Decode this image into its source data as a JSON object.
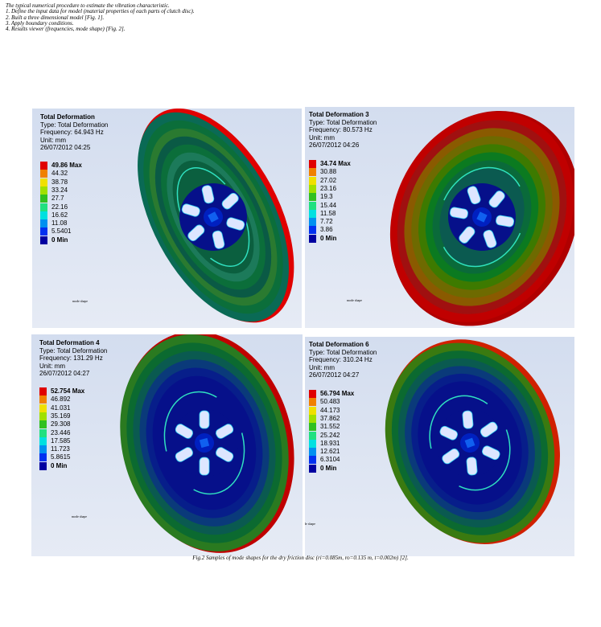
{
  "intro": [
    "The typical numerical procedure to estimate the vibration characteristic.",
    "1. Define the input data for model (material properties of each parts of clutch disc).",
    "2. Built a three dimensional model [Fig. 1].",
    "3. Apply boundary conditions.",
    "4. Results viewer (frequencies, mode shape) [Fig. 2]."
  ],
  "panels": [
    {
      "title": "Total Deformation",
      "type": "Type: Total Deformation",
      "frequency": "Frequency: 64.943 Hz",
      "unit": "Unit: mm",
      "date": "26/07/2012 04:25",
      "legend": [
        "49.86 Max",
        "44.32",
        "38.78",
        "33.24",
        "27.7",
        "22.16",
        "16.62",
        "11.08",
        "5.5401",
        "0 Min"
      ],
      "note": "mode shape"
    },
    {
      "title": "Total Deformation 3",
      "type": "Type: Total Deformation",
      "frequency": "Frequency: 80.573 Hz",
      "unit": "Unit: mm",
      "date": "26/07/2012 04:26",
      "legend": [
        "34.74 Max",
        "30.88",
        "27.02",
        "23.16",
        "19.3",
        "15.44",
        "11.58",
        "7.72",
        "3.86",
        "0 Min"
      ],
      "note": "mode shape"
    },
    {
      "title": "Total Deformation 4",
      "type": "Type: Total Deformation",
      "frequency": "Frequency: 131.29 Hz",
      "unit": "Unit: mm",
      "date": "26/07/2012 04:27",
      "legend": [
        "52.754 Max",
        "46.892",
        "41.031",
        "35.169",
        "29.308",
        "23.446",
        "17.585",
        "11.723",
        "5.8615",
        "0 Min"
      ],
      "note": "mode shape"
    },
    {
      "title": "Total Deformation 6",
      "type": "Type: Total Deformation",
      "frequency": "Frequency: 310.24 Hz",
      "unit": "Unit: mm",
      "date": "26/07/2012 04:27",
      "legend": [
        "56.794 Max",
        "50.483",
        "44.173",
        "37.862",
        "31.552",
        "25.242",
        "18.931",
        "12.621",
        "6.3104",
        "0 Min"
      ],
      "note": "mode shape"
    }
  ],
  "caption": "Fig.2 Samples of mode shapes for the dry friction disc (ri=0.085m, ro=0.135 m, t=0.002m) [2]."
}
